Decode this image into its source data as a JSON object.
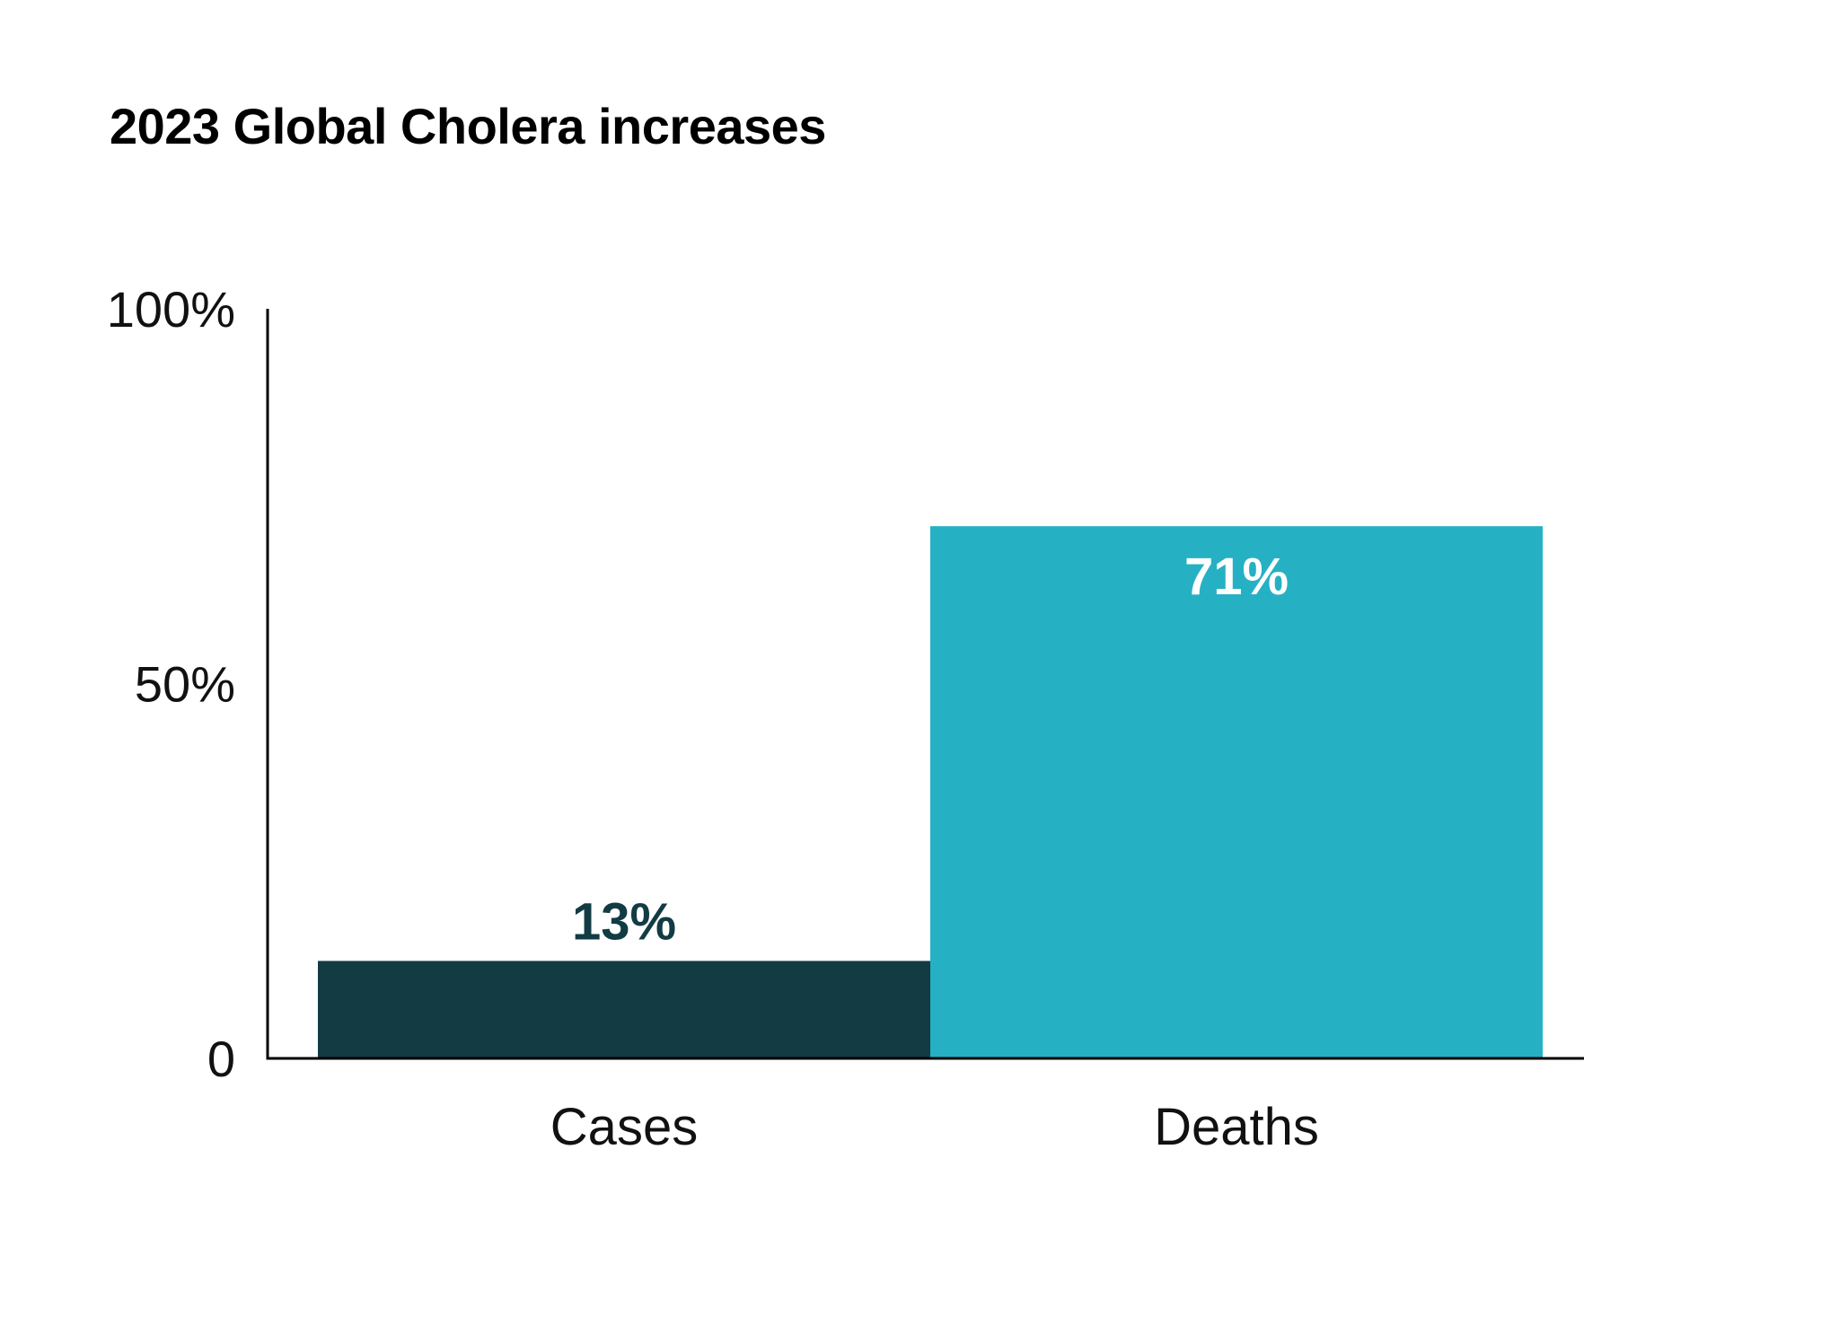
{
  "chart_data": {
    "type": "bar",
    "title": "2023 Global Cholera increases",
    "categories": [
      "Cases",
      "Deaths"
    ],
    "values": [
      13,
      71
    ],
    "value_labels": [
      "13%",
      "71%"
    ],
    "bar_colors": [
      "#133b44",
      "#25b1c3"
    ],
    "value_label_colors": [
      "#133b44",
      "#ffffff"
    ],
    "value_label_placement": [
      "above",
      "inside-top"
    ],
    "yaxis": {
      "ticks": [
        0,
        50,
        100
      ],
      "tick_labels": [
        "0",
        "50%",
        "100%"
      ],
      "max": 100
    },
    "ylim": [
      0,
      100
    ],
    "xlabel": "",
    "ylabel": "",
    "grid": false,
    "legend": "none"
  }
}
